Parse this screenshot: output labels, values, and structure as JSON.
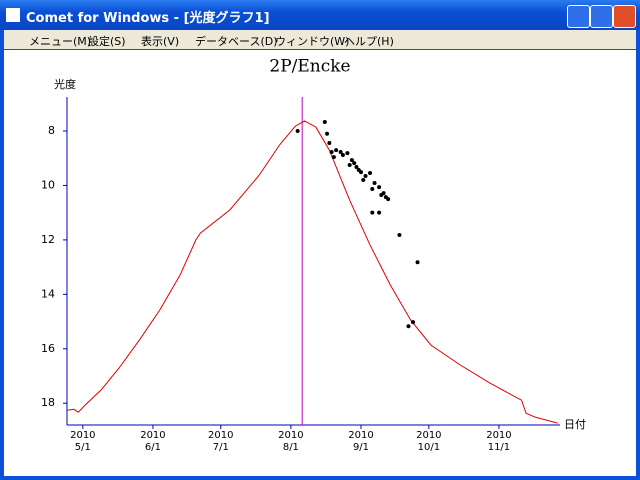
{
  "window": {
    "title": "Comet for Windows - [光度グラフ1]"
  },
  "menu": [
    "メニュー(M)",
    "設定(S)",
    "表示(V)",
    "データベース(D)",
    "ウィンドウ(W)",
    "ヘルプ(H)"
  ],
  "chart_data": {
    "type": "line",
    "title": "2P/Encke",
    "y_label": "光度",
    "x_label": "日付",
    "xlim": [
      "2010-04-24",
      "2010-11-28"
    ],
    "xticks": [
      {
        "value": "2010-05-01",
        "label": "2010\n5/1"
      },
      {
        "value": "2010-06-01",
        "label": "2010\n6/1"
      },
      {
        "value": "2010-07-01",
        "label": "2010\n7/1"
      },
      {
        "value": "2010-08-01",
        "label": "2010\n8/1"
      },
      {
        "value": "2010-09-01",
        "label": "2010\n9/1"
      },
      {
        "value": "2010-10-01",
        "label": "2010\n10/1"
      },
      {
        "value": "2010-11-01",
        "label": "2010\n11/1"
      }
    ],
    "ylim": [
      18.8,
      6.75
    ],
    "yticks": [
      8,
      10,
      12,
      14,
      16,
      18
    ],
    "axis_color": "#0000c0",
    "vline": {
      "x": "2010-08-06",
      "color": "#c000c0"
    },
    "series": [
      {
        "style": "line",
        "color": "#e00000",
        "x": [
          "2010-04-24",
          "2010-04-27",
          "2010-04-29",
          "2010-05-02",
          "2010-05-09",
          "2010-05-17",
          "2010-05-26",
          "2010-06-04",
          "2010-06-13",
          "2010-06-20",
          "2010-06-22",
          "2010-07-05",
          "2010-07-18",
          "2010-07-27",
          "2010-08-03",
          "2010-08-07",
          "2010-08-12",
          "2010-08-18",
          "2010-08-27",
          "2010-09-05",
          "2010-09-14",
          "2010-09-23",
          "2010-10-02",
          "2010-10-15",
          "2010-10-28",
          "2010-11-11",
          "2010-11-13",
          "2010-11-17",
          "2010-11-27"
        ],
        "values": [
          18.26,
          18.22,
          18.33,
          18.07,
          17.52,
          16.71,
          15.68,
          14.58,
          13.29,
          12.0,
          11.75,
          10.9,
          9.62,
          8.51,
          7.82,
          7.63,
          7.85,
          8.7,
          10.54,
          12.19,
          13.66,
          14.95,
          15.87,
          16.6,
          17.26,
          17.89,
          18.37,
          18.51,
          18.73
        ]
      },
      {
        "style": "points",
        "color": "#000000",
        "x": [
          "2010-08-04",
          "2010-08-16",
          "2010-08-17",
          "2010-08-18",
          "2010-08-19",
          "2010-08-20",
          "2010-08-21",
          "2010-08-23",
          "2010-08-24",
          "2010-08-26",
          "2010-08-27",
          "2010-08-28",
          "2010-08-29",
          "2010-08-30",
          "2010-08-31",
          "2010-09-01",
          "2010-09-02",
          "2010-09-03",
          "2010-09-05",
          "2010-09-06",
          "2010-09-07",
          "2010-09-09",
          "2010-09-10",
          "2010-09-11",
          "2010-09-12",
          "2010-09-13",
          "2010-09-06",
          "2010-09-09",
          "2010-09-18",
          "2010-09-26",
          "2010-09-24",
          "2010-09-22"
        ],
        "values": [
          8.0,
          7.67,
          8.1,
          8.44,
          8.77,
          8.96,
          8.7,
          8.77,
          8.88,
          8.81,
          9.25,
          9.07,
          9.18,
          9.32,
          9.43,
          9.51,
          9.8,
          9.65,
          9.54,
          10.13,
          9.91,
          10.06,
          10.35,
          10.28,
          10.43,
          10.5,
          11.0,
          11.0,
          11.82,
          12.82,
          15.02,
          15.17
        ]
      }
    ]
  }
}
